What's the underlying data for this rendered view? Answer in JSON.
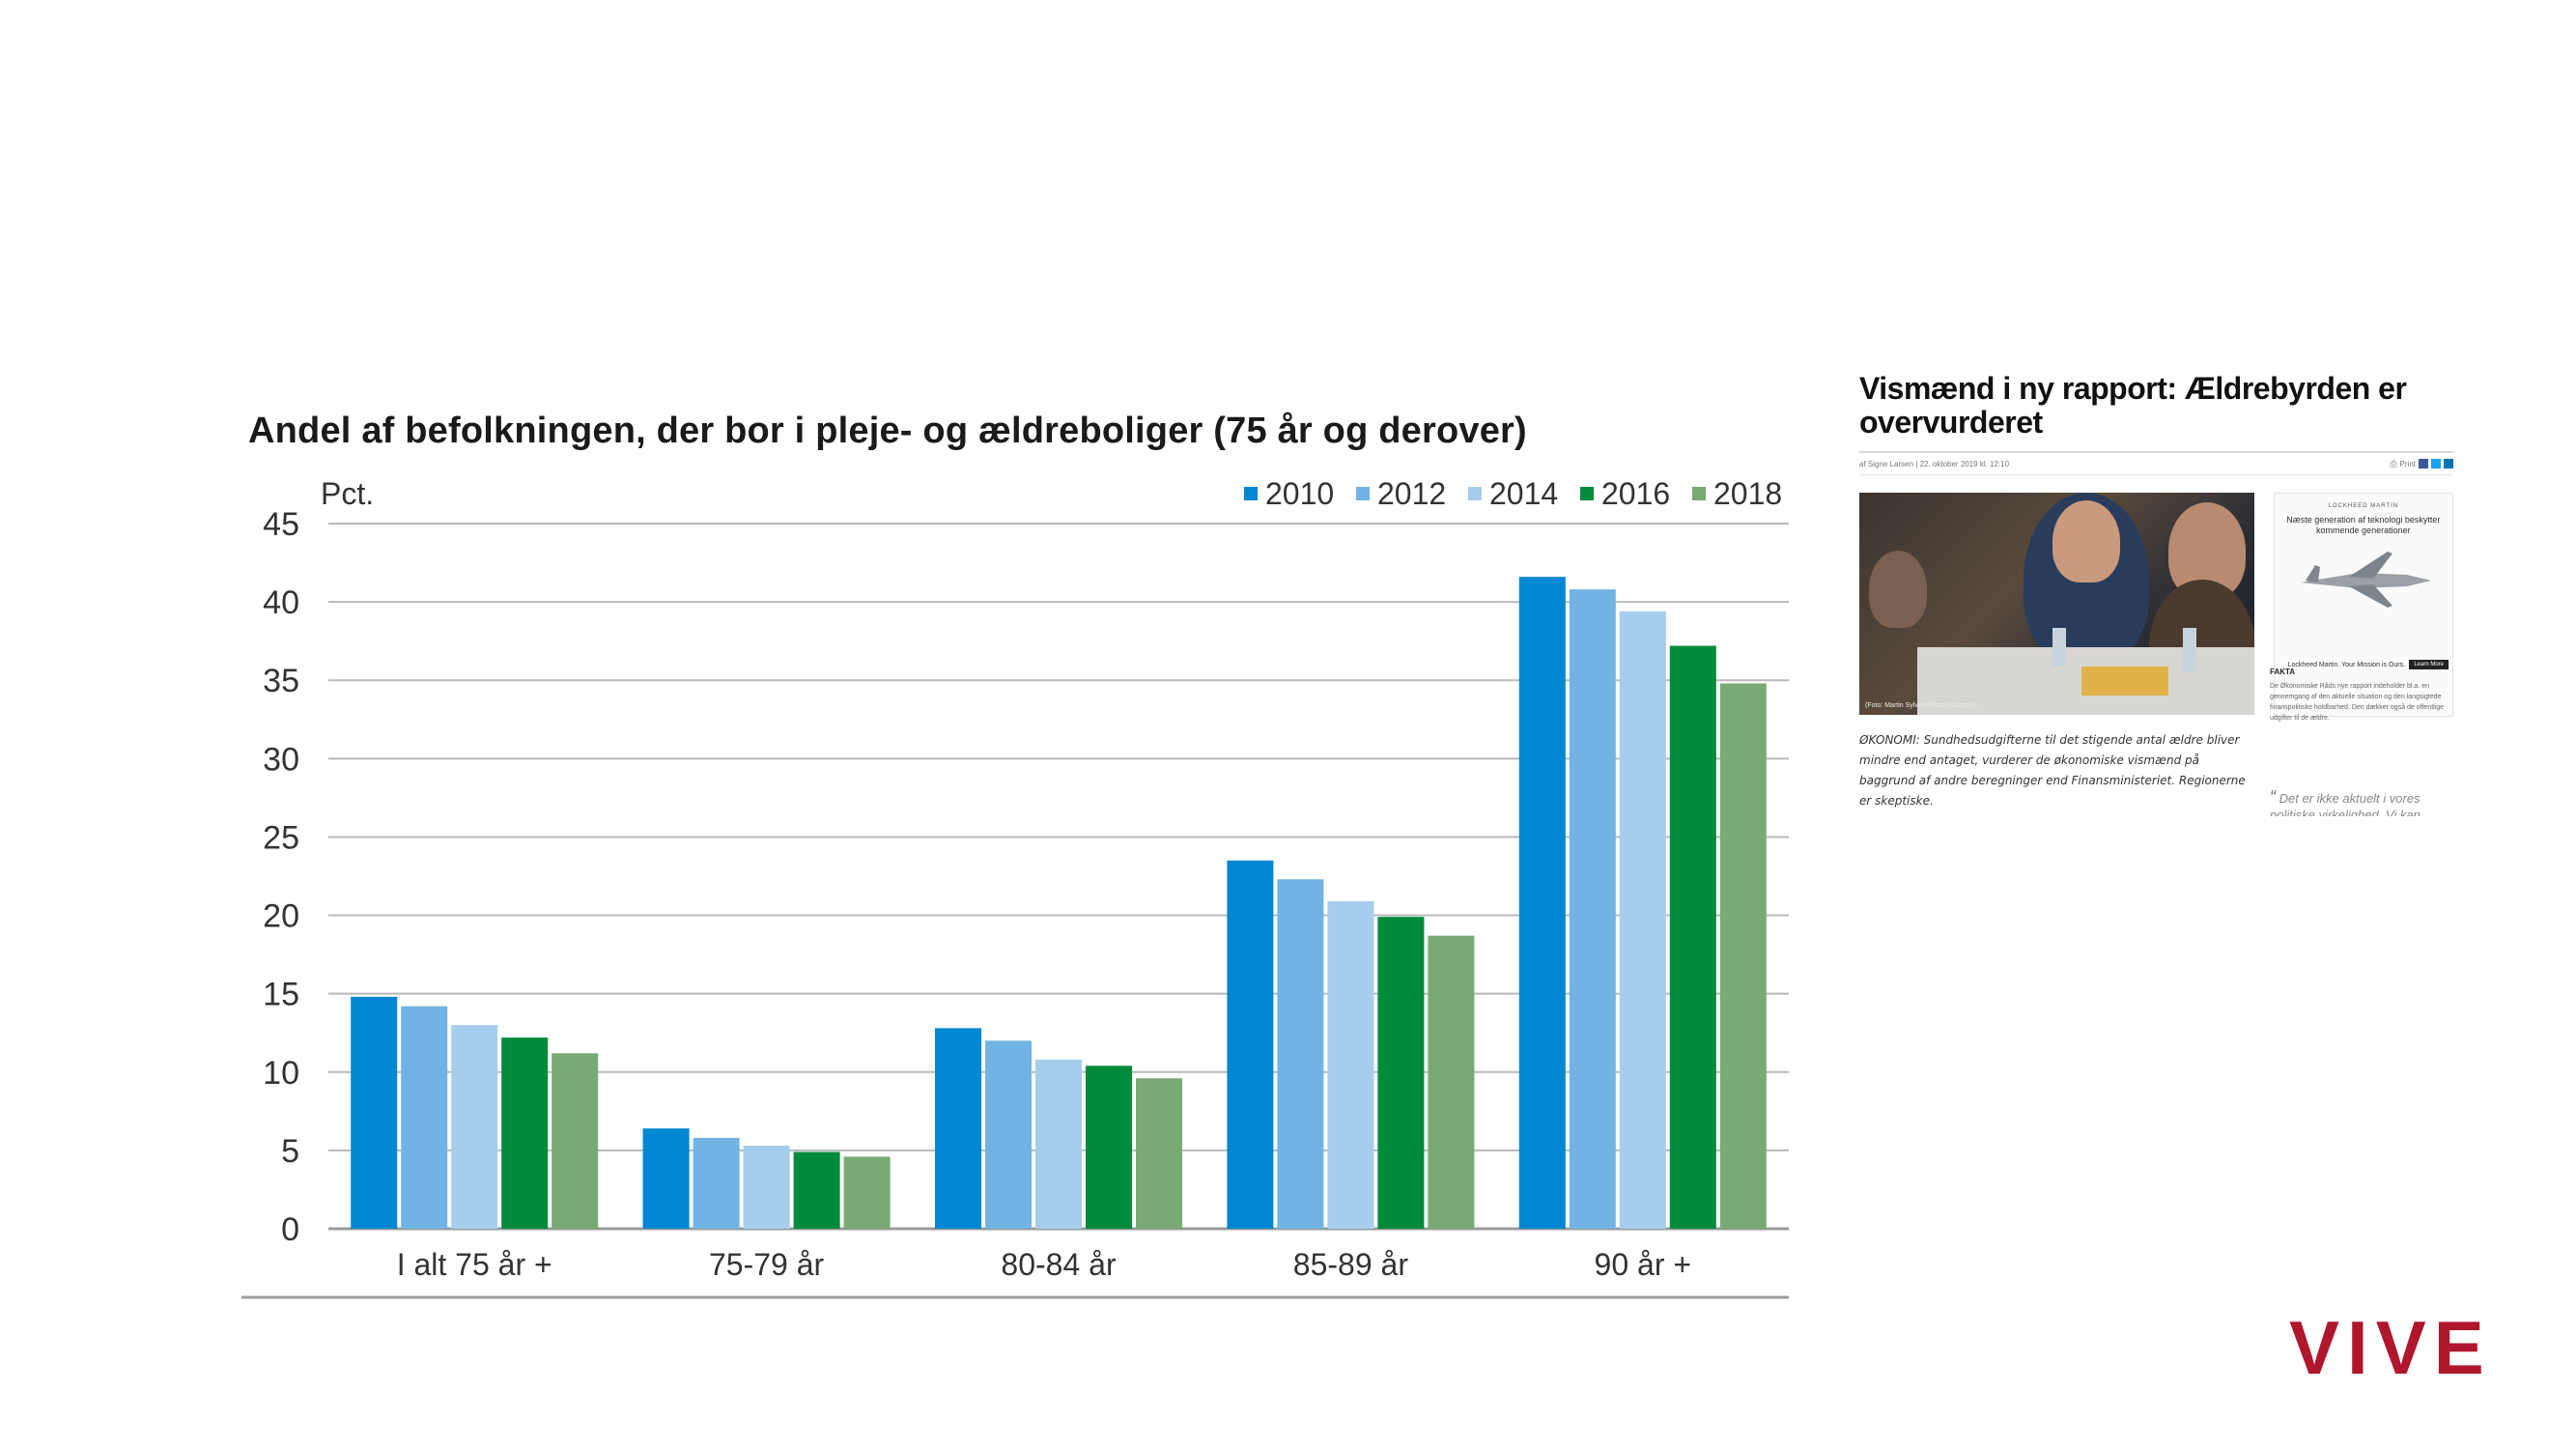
{
  "chart_data": {
    "type": "bar",
    "title": "Andel af befolkningen, der bor i pleje- og ældreboliger (75 år og derover)",
    "ylabel": "Pct.",
    "xlabel": "",
    "ylim": [
      0,
      45
    ],
    "yticks": [
      0,
      5,
      10,
      15,
      20,
      25,
      30,
      35,
      40,
      45
    ],
    "grid": true,
    "legend_position": "top-right",
    "categories": [
      "I alt 75 år +",
      "75-79 år",
      "80-84 år",
      "85-89 år",
      "90 år +"
    ],
    "series": [
      {
        "name": "2010",
        "color": "#0087d1",
        "values": [
          14.8,
          6.4,
          12.8,
          23.5,
          41.6
        ]
      },
      {
        "name": "2012",
        "color": "#72b3e3",
        "values": [
          14.2,
          5.8,
          12.0,
          22.3,
          40.8
        ]
      },
      {
        "name": "2014",
        "color": "#a6cdee",
        "values": [
          13.0,
          5.3,
          10.8,
          20.9,
          39.4
        ]
      },
      {
        "name": "2016",
        "color": "#008a3c",
        "values": [
          12.2,
          4.9,
          10.4,
          19.9,
          37.2
        ]
      },
      {
        "name": "2018",
        "color": "#78aa73",
        "values": [
          11.2,
          4.6,
          9.6,
          18.7,
          34.8
        ]
      }
    ]
  },
  "article": {
    "title": "Vismænd i ny rapport: Ældrebyrden er overvurderet",
    "byline": "af Signe Larsen | 22. oktober 2019 kl. 12:10",
    "print_label": "Print",
    "photo_caption": "(Foto: Martin Sylvest/Ritzau Scanpix)",
    "lead": "ØKONOMI: Sundhedsudgifterne til det stigende antal ældre bliver mindre end antaget, vurderer de økonomiske vismænd på baggrund af andre beregninger end Finansministeriet. Regionerne er skeptiske.",
    "ad_brand": "LOCKHEED MARTIN",
    "ad_text": "Næste generation af teknologi beskytter kommende generationer",
    "ad_footer": "Lockheed Martin. Your Mission is Ours.",
    "ad_button": "Learn More",
    "fakta_heading": "FAKTA",
    "fakta_text": "De Økonomiske Råds nye rapport indeholder bl.a. en gennemgang af den aktuelle situation og den langsigtede finanspolitiske holdbarhed. Den dækker også de offentlige udgifter til de ældre.",
    "quote": "Det er ikke aktuelt i vores politiske virkelighed. Vi kan"
  },
  "logo": {
    "text": "VIVE",
    "color": "#b0162c"
  }
}
